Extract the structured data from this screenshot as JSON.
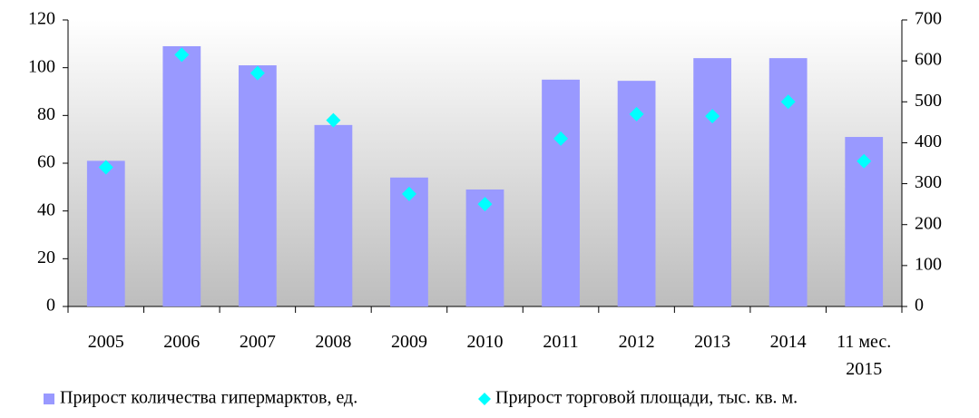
{
  "chart_data": {
    "type": "bar",
    "categories": [
      "2005",
      "2006",
      "2007",
      "2008",
      "2009",
      "2010",
      "2011",
      "2012",
      "2013",
      "2014",
      "11 мес. 2015"
    ],
    "series": [
      {
        "name": "Прирост количества гипермарктов, ед.",
        "color": "#9999ff",
        "values": [
          61,
          109,
          101,
          76,
          54,
          49,
          95,
          94.5,
          104,
          104,
          71
        ]
      },
      {
        "name": "Прирост торговой площади, тыс. кв. м.",
        "color": "#00ffff",
        "axis": "y2",
        "values": [
          340,
          615,
          570,
          455,
          275,
          250,
          410,
          470,
          465,
          500,
          355
        ]
      }
    ],
    "ylim": [
      0,
      120
    ],
    "yticks": [
      0,
      20,
      40,
      60,
      80,
      100,
      120
    ],
    "y2lim": [
      0,
      700
    ],
    "y2ticks": [
      0,
      100,
      200,
      300,
      400,
      500,
      600,
      700
    ],
    "legend": "bottom"
  }
}
